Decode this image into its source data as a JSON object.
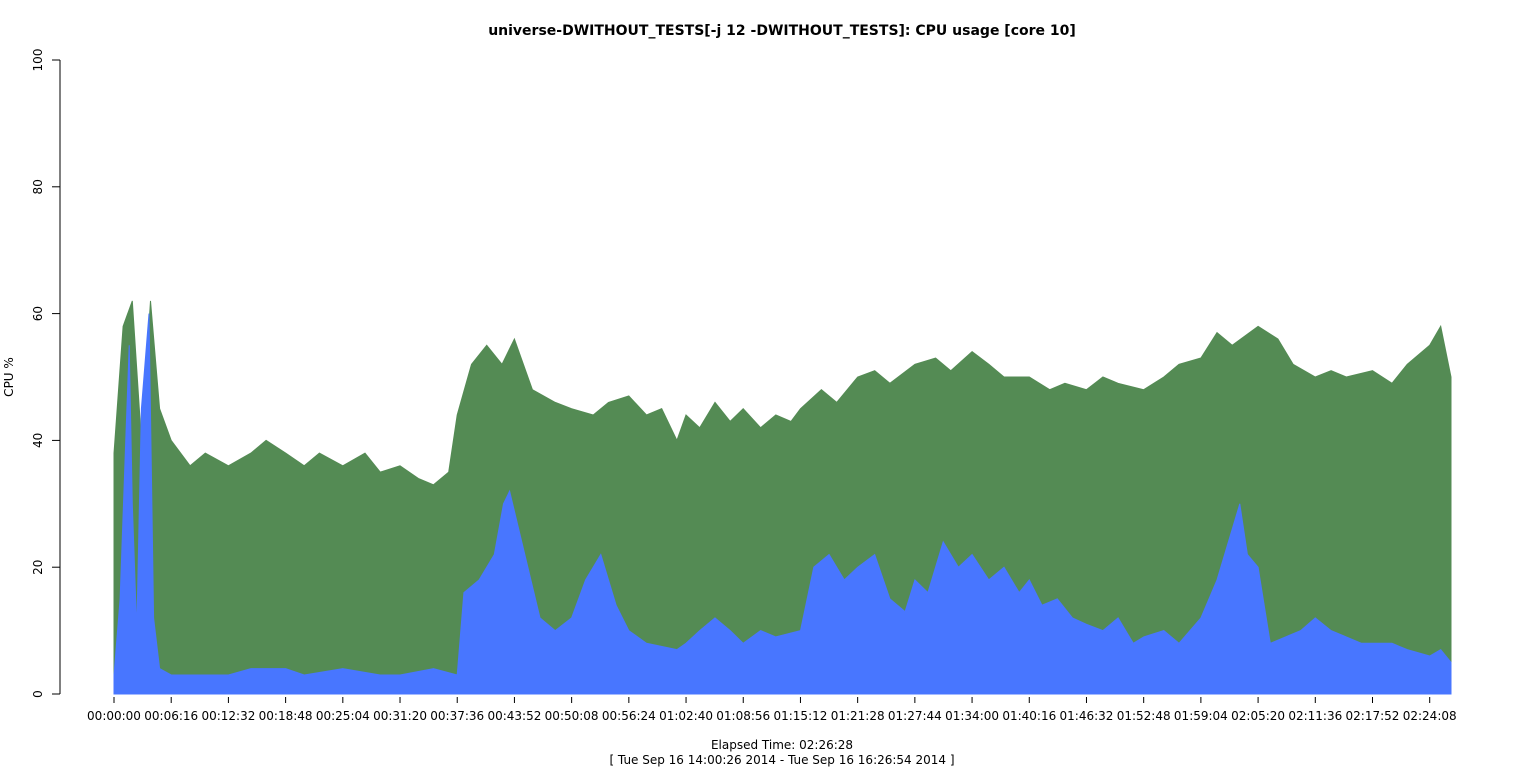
{
  "chart_data": {
    "type": "area",
    "title": "universe-DWITHOUT_TESTS[-j 12  -DWITHOUT_TESTS]: CPU usage [core 10]",
    "ylabel": "CPU %",
    "xlabel": "Elapsed Time: 02:26:28",
    "subtitle": "[ Tue Sep 16 14:00:26 2014 - Tue Sep 16 16:26:54 2014 ]",
    "ylim": [
      0,
      100
    ],
    "y_ticks": [
      0,
      20,
      40,
      60,
      80,
      100
    ],
    "x_ticks": [
      "00:00:00",
      "00:06:16",
      "00:12:32",
      "00:18:48",
      "00:25:04",
      "00:31:20",
      "00:37:36",
      "00:43:52",
      "00:50:08",
      "00:56:24",
      "01:02:40",
      "01:08:56",
      "01:15:12",
      "01:21:28",
      "01:27:44",
      "01:34:00",
      "01:40:16",
      "01:46:32",
      "01:52:48",
      "01:59:04",
      "02:05:20",
      "02:11:36",
      "02:17:52",
      "02:24:08"
    ],
    "x_tick_seconds": [
      0,
      376,
      752,
      1128,
      1504,
      1880,
      2256,
      2632,
      3008,
      3384,
      3760,
      4136,
      4512,
      4888,
      5264,
      5640,
      6016,
      6392,
      6768,
      7144,
      7520,
      7896,
      8272,
      8648
    ],
    "x_max_seconds": 8788,
    "series": [
      {
        "color": "#548b54",
        "x": [
          0,
          60,
          120,
          180,
          240,
          300,
          376,
          500,
          600,
          752,
          900,
          1000,
          1128,
          1250,
          1350,
          1504,
          1650,
          1750,
          1880,
          2000,
          2100,
          2200,
          2256,
          2350,
          2450,
          2550,
          2632,
          2750,
          2900,
          3008,
          3150,
          3250,
          3384,
          3500,
          3600,
          3700,
          3760,
          3850,
          3950,
          4050,
          4136,
          4250,
          4350,
          4450,
          4512,
          4650,
          4750,
          4888,
          5000,
          5100,
          5264,
          5400,
          5500,
          5640,
          5750,
          5850,
          6016,
          6150,
          6250,
          6392,
          6500,
          6600,
          6768,
          6900,
          7000,
          7144,
          7250,
          7350,
          7520,
          7650,
          7750,
          7896,
          8000,
          8100,
          8272,
          8400,
          8500,
          8648,
          8720,
          8788
        ],
        "values": [
          38,
          58,
          62,
          40,
          62,
          45,
          40,
          36,
          38,
          36,
          38,
          40,
          38,
          36,
          38,
          36,
          38,
          35,
          36,
          34,
          33,
          35,
          44,
          52,
          55,
          52,
          56,
          48,
          46,
          45,
          44,
          46,
          47,
          44,
          45,
          40,
          44,
          42,
          46,
          43,
          45,
          42,
          44,
          43,
          45,
          48,
          46,
          50,
          51,
          49,
          52,
          53,
          51,
          54,
          52,
          50,
          50,
          48,
          49,
          48,
          50,
          49,
          48,
          50,
          52,
          53,
          57,
          55,
          58,
          56,
          52,
          50,
          51,
          50,
          51,
          49,
          52,
          55,
          58,
          50
        ]
      },
      {
        "color": "#4876ff",
        "x": [
          0,
          40,
          80,
          100,
          120,
          150,
          180,
          230,
          260,
          300,
          376,
          500,
          600,
          752,
          900,
          1128,
          1250,
          1504,
          1750,
          1880,
          2100,
          2256,
          2300,
          2400,
          2500,
          2560,
          2600,
          2700,
          2800,
          2900,
          3008,
          3100,
          3200,
          3300,
          3384,
          3500,
          3700,
          3760,
          3850,
          3950,
          4050,
          4136,
          4250,
          4350,
          4512,
          4600,
          4700,
          4800,
          4888,
          5000,
          5100,
          5200,
          5264,
          5350,
          5450,
          5550,
          5640,
          5750,
          5850,
          5950,
          6016,
          6100,
          6200,
          6300,
          6392,
          6500,
          6600,
          6700,
          6768,
          6900,
          7000,
          7144,
          7250,
          7350,
          7400,
          7450,
          7520,
          7600,
          7700,
          7800,
          7896,
          8000,
          8100,
          8200,
          8272,
          8400,
          8500,
          8648,
          8720,
          8788
        ],
        "values": [
          3,
          15,
          42,
          55,
          30,
          10,
          45,
          60,
          12,
          4,
          3,
          3,
          3,
          3,
          4,
          4,
          3,
          4,
          3,
          3,
          4,
          3,
          16,
          18,
          22,
          30,
          32,
          22,
          12,
          10,
          12,
          18,
          22,
          14,
          10,
          8,
          7,
          8,
          10,
          12,
          10,
          8,
          10,
          9,
          10,
          20,
          22,
          18,
          20,
          22,
          15,
          13,
          18,
          16,
          24,
          20,
          22,
          18,
          20,
          16,
          18,
          14,
          15,
          12,
          11,
          10,
          12,
          8,
          9,
          10,
          8,
          12,
          18,
          26,
          30,
          22,
          20,
          8,
          9,
          10,
          12,
          10,
          9,
          8,
          8,
          8,
          7,
          6,
          7,
          5
        ]
      }
    ]
  }
}
